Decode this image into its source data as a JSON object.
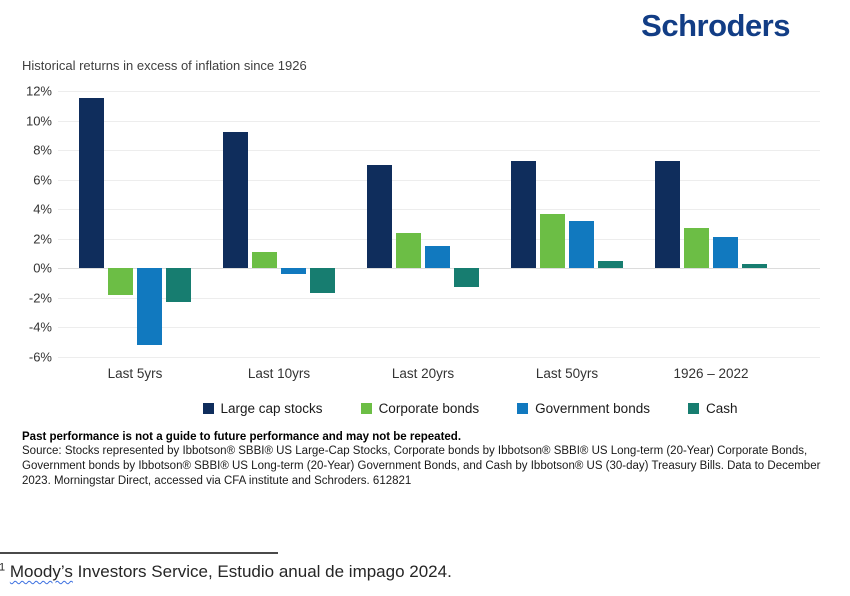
{
  "header": {
    "logo_text": "Schroders",
    "logo_color": "#123d85"
  },
  "chart": {
    "title": "Historical returns in excess of inflation since 1926"
  },
  "chart_data": {
    "type": "bar",
    "title": "Historical returns in excess of inflation since 1926",
    "categories": [
      "Last 5yrs",
      "Last 10yrs",
      "Last 20yrs",
      "Last 50yrs",
      "1926 – 2022"
    ],
    "series": [
      {
        "name": "Large cap stocks",
        "color": "#0f2d5c",
        "values": [
          11.5,
          9.2,
          7.0,
          7.3,
          7.3
        ]
      },
      {
        "name": "Corporate bonds",
        "color": "#6cbe45",
        "values": [
          -1.8,
          1.1,
          2.4,
          3.7,
          2.7
        ]
      },
      {
        "name": "Government bonds",
        "color": "#1179bf",
        "values": [
          -5.2,
          -0.4,
          1.5,
          3.2,
          2.1
        ]
      },
      {
        "name": "Cash",
        "color": "#177d70",
        "values": [
          -2.3,
          -1.7,
          -1.3,
          0.5,
          0.3
        ]
      }
    ],
    "xlabel": "",
    "ylabel": "",
    "ylim": [
      -6,
      12
    ],
    "ytick_step": 2,
    "ytick_suffix": "%",
    "grid": true,
    "legend_position": "bottom"
  },
  "footnote": {
    "warning": "Past performance is not a guide to future performance and may not be repeated.",
    "source": "Source: Stocks represented by Ibbotson® SBBI® US Large-Cap Stocks, Corporate bonds by Ibbotson® SBBI® US Long-term (20-Year) Corporate Bonds, Government bonds by Ibbotson® SBBI® US Long-term (20-Year) Government Bonds, and Cash by Ibbotson® US (30-day) Treasury Bills. Data to December 2023. Morningstar Direct, accessed via CFA institute and Schroders. 612821"
  },
  "doc_footnote": {
    "marker": "1",
    "misspelled_word": "Moody’s",
    "rest": " Investors Service, Estudio anual de impago 2024."
  }
}
